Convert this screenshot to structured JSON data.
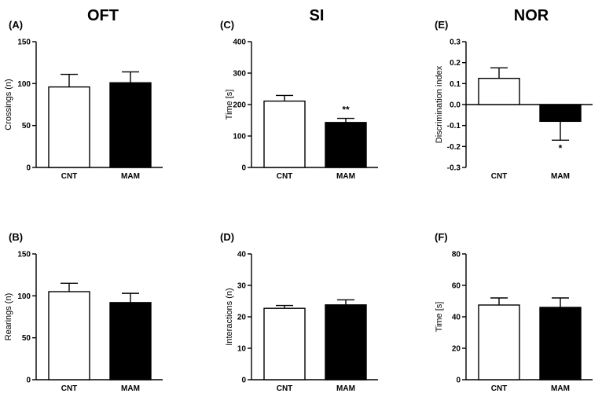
{
  "column_titles": [
    "OFT",
    "SI",
    "NOR"
  ],
  "chart_data": [
    {
      "panel": "(A)",
      "type": "bar",
      "ylabel": "Crossings (n)",
      "categories": [
        "CNT",
        "MAM"
      ],
      "ylim": [
        0,
        150
      ],
      "yticks": [
        0,
        50,
        100,
        150
      ],
      "values": [
        96,
        101
      ],
      "errors": [
        15,
        13
      ],
      "significance": [
        "",
        ""
      ],
      "bar_colors": [
        "#ffffff",
        "#000000"
      ]
    },
    {
      "panel": "(C)",
      "type": "bar",
      "ylabel": "Time [s]",
      "categories": [
        "CNT",
        "MAM"
      ],
      "ylim": [
        0,
        400
      ],
      "yticks": [
        0,
        100,
        200,
        300,
        400
      ],
      "values": [
        211,
        143
      ],
      "errors": [
        18,
        13
      ],
      "significance": [
        "",
        "**"
      ],
      "bar_colors": [
        "#ffffff",
        "#000000"
      ]
    },
    {
      "panel": "(E)",
      "type": "bar",
      "ylabel": "Discrimination index",
      "categories": [
        "CNT",
        "MAM"
      ],
      "ylim": [
        -0.3,
        0.3
      ],
      "yticks": [
        -0.3,
        -0.2,
        -0.1,
        0.0,
        0.1,
        0.2,
        0.3
      ],
      "ytick_labels": [
        "-0.3",
        "-0.2",
        "-0.1",
        "0.0",
        "0.1",
        "0.2",
        "0.3"
      ],
      "values": [
        0.125,
        -0.08
      ],
      "errors": [
        0.05,
        0.09
      ],
      "significance": [
        "",
        "*"
      ],
      "bar_colors": [
        "#ffffff",
        "#000000"
      ]
    },
    {
      "panel": "(B)",
      "type": "bar",
      "ylabel": "Rearings (n)",
      "categories": [
        "CNT",
        "MAM"
      ],
      "ylim": [
        0,
        150
      ],
      "yticks": [
        0,
        50,
        100,
        150
      ],
      "values": [
        105,
        92
      ],
      "errors": [
        10,
        11
      ],
      "significance": [
        "",
        ""
      ],
      "bar_colors": [
        "#ffffff",
        "#000000"
      ]
    },
    {
      "panel": "(D)",
      "type": "bar",
      "ylabel": "Interactions (n)",
      "categories": [
        "CNT",
        "MAM"
      ],
      "ylim": [
        0,
        40
      ],
      "yticks": [
        0,
        10,
        20,
        30,
        40
      ],
      "values": [
        22.7,
        23.8
      ],
      "errors": [
        0.9,
        1.6
      ],
      "significance": [
        "",
        ""
      ],
      "bar_colors": [
        "#ffffff",
        "#000000"
      ]
    },
    {
      "panel": "(F)",
      "type": "bar",
      "ylabel": "Time [s]",
      "categories": [
        "CNT",
        "MAM"
      ],
      "ylim": [
        0,
        80
      ],
      "yticks": [
        0,
        20,
        40,
        60,
        80
      ],
      "values": [
        47.5,
        46
      ],
      "errors": [
        4.5,
        6
      ],
      "significance": [
        "",
        ""
      ],
      "bar_colors": [
        "#ffffff",
        "#000000"
      ]
    }
  ]
}
